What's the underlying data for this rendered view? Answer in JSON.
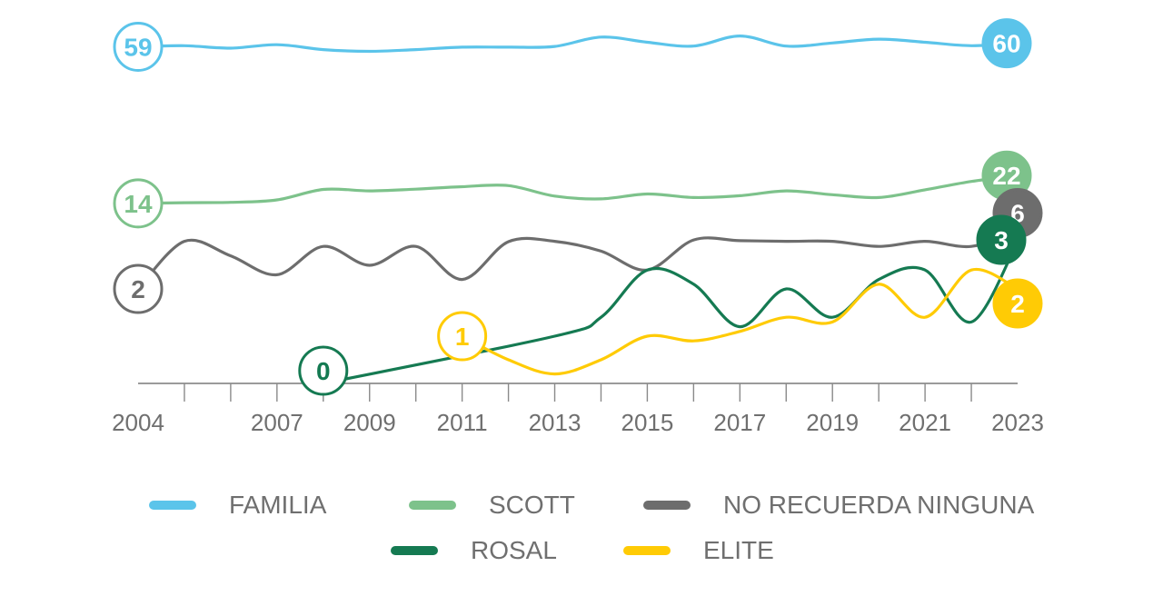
{
  "chart_data": {
    "type": "line",
    "x_tick_labels": [
      "2004",
      "2007",
      "2009",
      "2011",
      "2013",
      "2015",
      "2017",
      "2019",
      "2021",
      "2023"
    ],
    "x_tick_years": [
      2004,
      2007,
      2009,
      2011,
      2013,
      2015,
      2017,
      2019,
      2021,
      2023
    ],
    "x_minor_ticks": [
      2005,
      2006,
      2008,
      2010,
      2012,
      2014,
      2016,
      2018,
      2020,
      2022
    ],
    "xlim": [
      2004,
      2023
    ],
    "ylim": [
      0,
      65
    ],
    "grid": false,
    "legend_position": "bottom",
    "series": [
      {
        "name": "FAMILIA",
        "color": "#5bc4ea",
        "x": [
          2004,
          2005,
          2006,
          2007,
          2008,
          2009,
          2010,
          2011,
          2012,
          2013,
          2014,
          2015,
          2016,
          2017,
          2018,
          2019,
          2020,
          2021,
          2022,
          2023
        ],
        "values": [
          59,
          59.3,
          58.6,
          59.6,
          58.2,
          57.7,
          58.2,
          58.9,
          58.9,
          59.1,
          61.8,
          60.3,
          59.2,
          62.1,
          59.2,
          60.1,
          61.2,
          60.3,
          59.3,
          60
        ],
        "start_badge": "59",
        "end_badge": "60",
        "start_badge_style": "outline",
        "end_badge_style": "filled"
      },
      {
        "name": "SCOTT",
        "color": "#7dc28b",
        "x": [
          2004,
          2005,
          2006,
          2007,
          2008,
          2009,
          2010,
          2011,
          2012,
          2013,
          2014,
          2015,
          2016,
          2017,
          2018,
          2019,
          2020,
          2021,
          2022,
          2023
        ],
        "values": [
          14,
          14.2,
          14.3,
          15,
          18,
          17.6,
          18.1,
          18.8,
          19.1,
          16.1,
          15.3,
          16.7,
          15.7,
          16.2,
          17.6,
          16.5,
          15.7,
          17.9,
          20.3,
          22
        ],
        "start_badge": "14",
        "end_badge": "22",
        "start_badge_style": "outline",
        "end_badge_style": "filled"
      },
      {
        "name": "NO RECUERDA NINGUNA",
        "color": "#6d6d6d",
        "x": [
          2004,
          2005,
          2006,
          2007,
          2008,
          2009,
          2010,
          2011,
          2012,
          2013,
          2014,
          2015,
          2016,
          2017,
          2018,
          2019,
          2020,
          2021,
          2022,
          2023
        ],
        "values": [
          2,
          3.1,
          2.7,
          2.3,
          2.9,
          2.5,
          2.9,
          2.2,
          3,
          3.1,
          2.8,
          2.4,
          3.5,
          3.3,
          3.1,
          3.1,
          2.9,
          3.1,
          2.9,
          6
        ],
        "start_badge": "2",
        "end_badge": "6",
        "start_badge_style": "outline",
        "end_badge_style": "filled"
      },
      {
        "name": "ROSAL",
        "color": "#157a52",
        "x": [
          2008,
          2013,
          2014,
          2015,
          2016,
          2017,
          2018,
          2019,
          2020,
          2021,
          2022,
          2023
        ],
        "values": [
          0,
          1,
          1.4,
          2.4,
          2.1,
          1.2,
          2,
          1.4,
          2.2,
          2.4,
          1.3,
          3
        ],
        "start_badge": "0",
        "end_badge": "3",
        "start_badge_style": "outline",
        "end_badge_style": "filled"
      },
      {
        "name": "ELITE",
        "color": "#ffcb05",
        "x": [
          2011,
          2012,
          2013,
          2014,
          2015,
          2016,
          2017,
          2018,
          2019,
          2020,
          2021,
          2022,
          2023
        ],
        "values": [
          1,
          0.5,
          0.2,
          0.5,
          1,
          0.9,
          1.1,
          1.4,
          1.3,
          2.1,
          1.4,
          2.4,
          2
        ],
        "start_badge": "1",
        "end_badge": "2",
        "start_badge_style": "outline",
        "end_badge_style": "filled"
      }
    ]
  }
}
